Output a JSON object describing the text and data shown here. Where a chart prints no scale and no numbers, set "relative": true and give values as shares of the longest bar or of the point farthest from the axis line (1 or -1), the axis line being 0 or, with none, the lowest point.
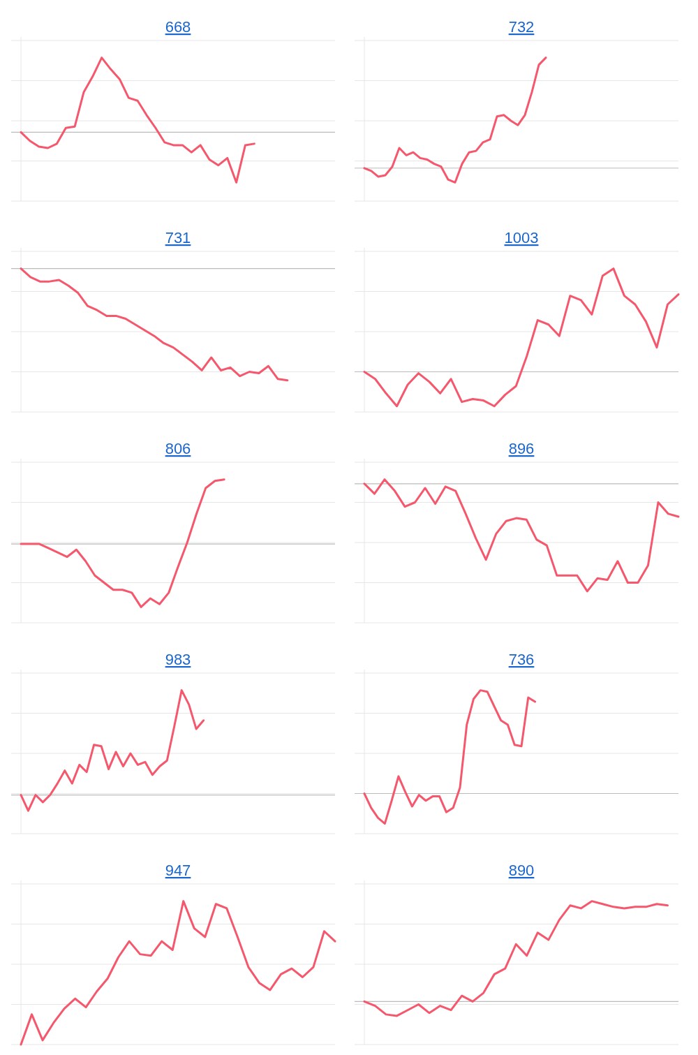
{
  "chart_data": [
    {
      "type": "line",
      "title": "668",
      "relative": true,
      "grid": true,
      "categories": [
        null,
        null,
        null,
        null,
        null,
        null,
        null,
        null,
        null,
        null,
        null,
        null,
        null,
        null,
        null,
        null,
        null,
        null,
        null,
        null,
        null,
        null,
        null,
        null,
        null,
        null,
        null,
        null,
        null,
        null,
        null,
        null,
        null,
        null,
        null,
        null
      ],
      "ref_lines": [
        {
          "axis": "y",
          "value": 0.48,
          "color": "#bbbbbb"
        }
      ],
      "series": [
        {
          "color": "#f5576c",
          "values": [
            0.48,
            0.42,
            0.38,
            0.37,
            0.4,
            0.51,
            0.52,
            0.76,
            0.87,
            1,
            0.92,
            0.85,
            0.72,
            0.7,
            0.6,
            0.51,
            0.41,
            0.39,
            0.39,
            0.34,
            0.39,
            0.29,
            0.25,
            0.3,
            0.13,
            0.39,
            0.4,
            null,
            null,
            null,
            null,
            null,
            null,
            null,
            null,
            null
          ]
        }
      ]
    },
    {
      "type": "line",
      "title": "732",
      "relative": true,
      "grid": true,
      "categories": [
        null,
        null,
        null,
        null,
        null,
        null,
        null,
        null,
        null,
        null,
        null,
        null,
        null,
        null,
        null,
        null,
        null,
        null,
        null,
        null,
        null,
        null,
        null,
        null,
        null,
        null,
        null,
        null,
        null,
        null,
        null,
        null,
        null,
        null,
        null,
        null,
        null,
        null,
        null,
        null,
        null,
        null,
        null,
        null,
        null,
        null
      ],
      "ref_lines": [
        {
          "axis": "y",
          "value": 0.23,
          "color": "#bbbbbb"
        }
      ],
      "series": [
        {
          "color": "#f5576c",
          "values": [
            0.23,
            0.21,
            0.17,
            0.18,
            0.24,
            0.37,
            0.32,
            0.34,
            0.3,
            0.29,
            0.26,
            0.24,
            0.15,
            0.13,
            0.26,
            0.34,
            0.35,
            0.41,
            0.43,
            0.59,
            0.6,
            0.56,
            0.53,
            0.6,
            0.76,
            0.95,
            1,
            null,
            null,
            null,
            null,
            null,
            null,
            null,
            null,
            null,
            null,
            null,
            null,
            null,
            null,
            null,
            null,
            null,
            null,
            null
          ]
        }
      ]
    },
    {
      "type": "line",
      "title": "731",
      "relative": true,
      "grid": true,
      "categories": [
        null,
        null,
        null,
        null,
        null,
        null,
        null,
        null,
        null,
        null,
        null,
        null,
        null,
        null,
        null,
        null,
        null,
        null,
        null,
        null,
        null,
        null,
        null,
        null,
        null,
        null,
        null,
        null,
        null,
        null,
        null,
        null,
        null,
        null
      ],
      "ref_lines": [
        {
          "axis": "y",
          "value": 1,
          "color": "#bbbbbb"
        }
      ],
      "series": [
        {
          "color": "#f5576c",
          "values": [
            1,
            0.94,
            0.91,
            0.91,
            0.92,
            0.88,
            0.83,
            0.74,
            0.71,
            0.67,
            0.67,
            0.65,
            0.61,
            0.57,
            0.53,
            0.48,
            0.45,
            0.4,
            0.35,
            0.29,
            0.38,
            0.29,
            0.31,
            0.25,
            0.28,
            0.27,
            0.32,
            0.23,
            0.22,
            null,
            null,
            null,
            null,
            null
          ]
        }
      ]
    },
    {
      "type": "line",
      "title": "1003",
      "relative": true,
      "grid": true,
      "categories": [
        null,
        null,
        null,
        null,
        null,
        null,
        null,
        null,
        null,
        null,
        null,
        null,
        null,
        null,
        null,
        null,
        null,
        null,
        null,
        null,
        null,
        null,
        null,
        null,
        null,
        null,
        null,
        null,
        null,
        null
      ],
      "ref_lines": [
        {
          "axis": "y",
          "value": 0.28,
          "color": "#bbbbbb"
        }
      ],
      "series": [
        {
          "color": "#f5576c",
          "values": [
            0.28,
            0.23,
            0.13,
            0.04,
            0.19,
            0.27,
            0.21,
            0.13,
            0.23,
            0.07,
            0.09,
            0.08,
            0.04,
            0.12,
            0.18,
            0.39,
            0.64,
            0.61,
            0.53,
            0.81,
            0.78,
            0.68,
            0.95,
            1,
            0.81,
            0.75,
            0.63,
            0.45,
            0.75,
            0.82
          ]
        }
      ]
    },
    {
      "type": "line",
      "title": "806",
      "relative": true,
      "grid": true,
      "categories": [
        null,
        null,
        null,
        null,
        null,
        null,
        null,
        null,
        null,
        null,
        null,
        null,
        null,
        null,
        null,
        null,
        null,
        null,
        null,
        null,
        null,
        null,
        null,
        null,
        null,
        null,
        null,
        null,
        null,
        null,
        null,
        null,
        null,
        null,
        null
      ],
      "ref_lines": [
        {
          "axis": "y",
          "value": 0.55,
          "color": "#bbbbbb"
        }
      ],
      "series": [
        {
          "color": "#f5576c",
          "values": [
            0.55,
            0.55,
            0.55,
            0.52,
            0.49,
            0.46,
            0.51,
            0.43,
            0.33,
            0.28,
            0.23,
            0.23,
            0.21,
            0.11,
            0.17,
            0.13,
            0.21,
            0.39,
            0.56,
            0.76,
            0.94,
            0.99,
            1,
            null,
            null,
            null,
            null,
            null,
            null,
            null,
            null,
            null,
            null,
            null,
            null
          ]
        }
      ]
    },
    {
      "type": "line",
      "title": "896",
      "relative": true,
      "grid": true,
      "categories": [
        null,
        null,
        null,
        null,
        null,
        null,
        null,
        null,
        null,
        null,
        null,
        null,
        null,
        null,
        null,
        null,
        null,
        null,
        null,
        null,
        null,
        null,
        null,
        null,
        null,
        null,
        null,
        null,
        null,
        null,
        null,
        null
      ],
      "ref_lines": [
        {
          "axis": "y",
          "value": 0.97,
          "color": "#bbbbbb"
        }
      ],
      "series": [
        {
          "color": "#f5576c",
          "values": [
            0.97,
            0.9,
            1,
            0.92,
            0.81,
            0.84,
            0.94,
            0.83,
            0.95,
            0.92,
            0.76,
            0.59,
            0.44,
            0.62,
            0.71,
            0.73,
            0.72,
            0.58,
            0.54,
            0.33,
            0.33,
            0.33,
            0.22,
            0.31,
            0.3,
            0.43,
            0.28,
            0.28,
            0.4,
            0.84,
            0.76,
            0.74
          ]
        }
      ]
    },
    {
      "type": "line",
      "title": "983",
      "relative": true,
      "grid": true,
      "categories": [
        null,
        null,
        null,
        null,
        null,
        null,
        null,
        null,
        null,
        null,
        null,
        null,
        null,
        null,
        null,
        null,
        null,
        null,
        null,
        null,
        null,
        null,
        null,
        null,
        null,
        null,
        null,
        null,
        null,
        null,
        null,
        null,
        null,
        null,
        null,
        null,
        null,
        null,
        null,
        null,
        null,
        null,
        null,
        null
      ],
      "ref_lines": [
        {
          "axis": "y",
          "value": 0.27,
          "color": "#bbbbbb"
        }
      ],
      "series": [
        {
          "color": "#f5576c",
          "values": [
            0.27,
            0.16,
            0.27,
            0.22,
            0.27,
            0.35,
            0.44,
            0.35,
            0.48,
            0.43,
            0.62,
            0.61,
            0.45,
            0.57,
            0.47,
            0.56,
            0.48,
            0.5,
            0.41,
            0.47,
            0.51,
            0.75,
            1,
            0.9,
            0.73,
            0.79,
            null,
            null,
            null,
            null,
            null,
            null,
            null,
            null,
            null,
            null,
            null,
            null,
            null,
            null,
            null,
            null,
            null,
            null
          ]
        }
      ]
    },
    {
      "type": "line",
      "title": "736",
      "relative": true,
      "grid": true,
      "categories": [
        null,
        null,
        null,
        null,
        null,
        null,
        null,
        null,
        null,
        null,
        null,
        null,
        null,
        null,
        null,
        null,
        null,
        null,
        null,
        null,
        null,
        null,
        null,
        null,
        null,
        null,
        null,
        null,
        null,
        null,
        null,
        null,
        null,
        null,
        null,
        null,
        null,
        null,
        null,
        null,
        null,
        null,
        null,
        null,
        null,
        null,
        null
      ],
      "ref_lines": [
        {
          "axis": "y",
          "value": 0.28,
          "color": "#bbbbbb"
        }
      ],
      "series": [
        {
          "color": "#f5576c",
          "values": [
            0.28,
            0.18,
            0.11,
            0.07,
            0.23,
            0.4,
            0.29,
            0.19,
            0.27,
            0.23,
            0.26,
            0.26,
            0.15,
            0.18,
            0.32,
            0.76,
            0.94,
            1,
            0.99,
            0.89,
            0.79,
            0.76,
            0.62,
            0.61,
            0.95,
            0.92,
            null,
            null,
            null,
            null,
            null,
            null,
            null,
            null,
            null,
            null,
            null,
            null,
            null,
            null,
            null,
            null,
            null,
            null,
            null,
            null,
            null
          ]
        }
      ]
    },
    {
      "type": "line",
      "title": "947",
      "relative": true,
      "grid": true,
      "categories": [
        null,
        null,
        null,
        null,
        null,
        null,
        null,
        null,
        null,
        null,
        null,
        null,
        null,
        null,
        null,
        null,
        null,
        null,
        null,
        null,
        null,
        null,
        null,
        null,
        null,
        null,
        null,
        null,
        null,
        null
      ],
      "series": [
        {
          "color": "#f5576c",
          "values": [
            0,
            0.21,
            0.03,
            0.15,
            0.25,
            0.32,
            0.26,
            0.37,
            0.46,
            0.61,
            0.72,
            0.63,
            0.62,
            0.72,
            0.66,
            1,
            0.81,
            0.75,
            0.98,
            0.95,
            0.75,
            0.54,
            0.43,
            0.38,
            0.49,
            0.53,
            0.47,
            0.54,
            0.79,
            0.72
          ]
        }
      ]
    },
    {
      "type": "line",
      "title": "890",
      "relative": true,
      "grid": true,
      "categories": [
        null,
        null,
        null,
        null,
        null,
        null,
        null,
        null,
        null,
        null,
        null,
        null,
        null,
        null,
        null,
        null,
        null,
        null,
        null,
        null,
        null,
        null,
        null,
        null,
        null,
        null,
        null,
        null,
        null,
        null
      ],
      "ref_lines": [
        {
          "axis": "y",
          "value": 0.3,
          "color": "#bbbbbb"
        }
      ],
      "series": [
        {
          "color": "#f5576c",
          "values": [
            0.3,
            0.27,
            0.21,
            0.2,
            0.24,
            0.28,
            0.22,
            0.27,
            0.24,
            0.34,
            0.3,
            0.36,
            0.49,
            0.53,
            0.7,
            0.62,
            0.78,
            0.73,
            0.87,
            0.97,
            0.95,
            1,
            0.98,
            0.96,
            0.95,
            0.96,
            0.96,
            0.98,
            0.97,
            null
          ]
        }
      ]
    }
  ]
}
